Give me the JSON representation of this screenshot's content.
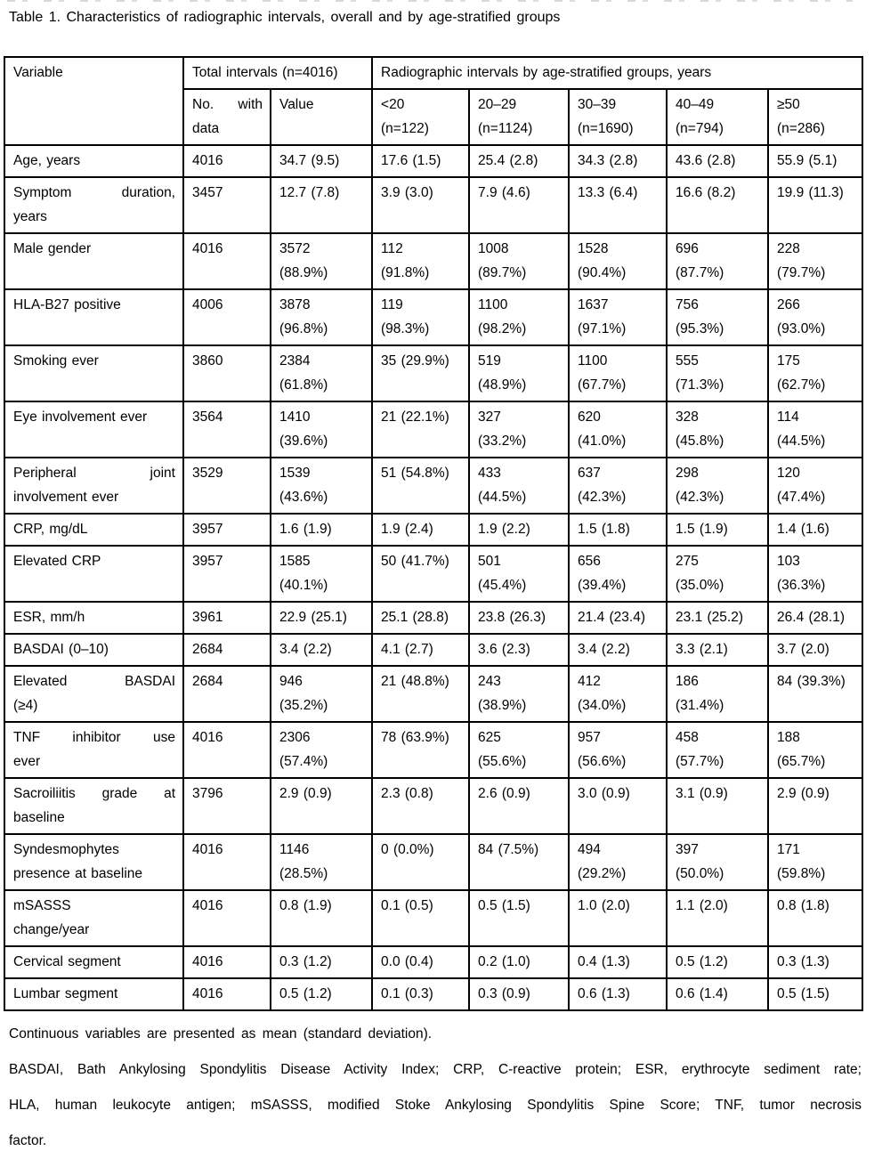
{
  "title": "Table 1. Characteristics of radiographic intervals, overall and by age-stratified groups",
  "table": {
    "header": {
      "variable": "Variable",
      "total": "Total intervals (n=4016)",
      "groups": "Radiographic intervals by age-stratified groups, years",
      "sub": [
        [
          "No. with",
          "data"
        ],
        [
          "Value"
        ],
        [
          "<20",
          "(n=122)"
        ],
        [
          "20–29",
          "(n=1124)"
        ],
        [
          "30–39",
          "(n=1690)"
        ],
        [
          "40–49",
          "(n=794)"
        ],
        [
          "≥50",
          "(n=286)"
        ]
      ]
    },
    "rows": [
      {
        "variable": [
          "Age, years"
        ],
        "indent": false,
        "cells": [
          [
            "4016"
          ],
          [
            "34.7 (9.5)"
          ],
          [
            "17.6 (1.5)"
          ],
          [
            "25.4 (2.8)"
          ],
          [
            "34.3 (2.8)"
          ],
          [
            "43.6 (2.8)"
          ],
          [
            "55.9 (5.1)"
          ]
        ]
      },
      {
        "variable": [
          "Symptom duration,",
          "years"
        ],
        "indent": false,
        "cells": [
          [
            "3457"
          ],
          [
            "12.7 (7.8)"
          ],
          [
            "3.9 (3.0)"
          ],
          [
            "7.9 (4.6)"
          ],
          [
            "13.3 (6.4)"
          ],
          [
            "16.6 (8.2)"
          ],
          [
            "19.9 (11.3)"
          ]
        ]
      },
      {
        "variable": [
          "Male gender"
        ],
        "indent": false,
        "cells": [
          [
            "4016"
          ],
          [
            "3572",
            "(88.9%)"
          ],
          [
            "112",
            "(91.8%)"
          ],
          [
            "1008",
            "(89.7%)"
          ],
          [
            "1528",
            "(90.4%)"
          ],
          [
            "696",
            "(87.7%)"
          ],
          [
            "228",
            "(79.7%)"
          ]
        ]
      },
      {
        "variable": [
          "HLA-B27 positive"
        ],
        "indent": false,
        "cells": [
          [
            "4006"
          ],
          [
            "3878",
            "(96.8%)"
          ],
          [
            "119",
            "(98.3%)"
          ],
          [
            "1100",
            "(98.2%)"
          ],
          [
            "1637",
            "(97.1%)"
          ],
          [
            "756",
            "(95.3%)"
          ],
          [
            "266",
            "(93.0%)"
          ]
        ]
      },
      {
        "variable": [
          "Smoking ever"
        ],
        "indent": false,
        "cells": [
          [
            "3860"
          ],
          [
            "2384",
            "(61.8%)"
          ],
          [
            "35 (29.9%)"
          ],
          [
            "519",
            "(48.9%)"
          ],
          [
            "1100",
            "(67.7%)"
          ],
          [
            "555",
            "(71.3%)"
          ],
          [
            "175",
            "(62.7%)"
          ]
        ]
      },
      {
        "variable": [
          "Eye involvement ever"
        ],
        "indent": false,
        "cells": [
          [
            "3564"
          ],
          [
            "1410",
            "(39.6%)"
          ],
          [
            "21 (22.1%)"
          ],
          [
            "327",
            "(33.2%)"
          ],
          [
            "620",
            "(41.0%)"
          ],
          [
            "328",
            "(45.8%)"
          ],
          [
            "114",
            "(44.5%)"
          ]
        ]
      },
      {
        "variable": [
          "Peripheral joint",
          "involvement ever"
        ],
        "indent": false,
        "cells": [
          [
            "3529"
          ],
          [
            "1539",
            "(43.6%)"
          ],
          [
            "51 (54.8%)"
          ],
          [
            "433",
            "(44.5%)"
          ],
          [
            "637",
            "(42.3%)"
          ],
          [
            "298",
            "(42.3%)"
          ],
          [
            "120",
            "(47.4%)"
          ]
        ]
      },
      {
        "variable": [
          "CRP, mg/dL"
        ],
        "indent": false,
        "cells": [
          [
            "3957"
          ],
          [
            "1.6 (1.9)"
          ],
          [
            "1.9 (2.4)"
          ],
          [
            "1.9 (2.2)"
          ],
          [
            "1.5 (1.8)"
          ],
          [
            "1.5 (1.9)"
          ],
          [
            "1.4 (1.6)"
          ]
        ]
      },
      {
        "variable": [
          "Elevated CRP"
        ],
        "indent": false,
        "cells": [
          [
            "3957"
          ],
          [
            "1585",
            "(40.1%)"
          ],
          [
            "50 (41.7%)"
          ],
          [
            "501",
            "(45.4%)"
          ],
          [
            "656",
            "(39.4%)"
          ],
          [
            "275",
            "(35.0%)"
          ],
          [
            "103",
            "(36.3%)"
          ]
        ]
      },
      {
        "variable": [
          "ESR, mm/h"
        ],
        "indent": false,
        "cells": [
          [
            "3961"
          ],
          [
            "22.9 (25.1)"
          ],
          [
            "25.1 (28.8)"
          ],
          [
            "23.8 (26.3)"
          ],
          [
            "21.4 (23.4)"
          ],
          [
            "23.1 (25.2)"
          ],
          [
            "26.4 (28.1)"
          ]
        ]
      },
      {
        "variable": [
          "BASDAI (0–10)"
        ],
        "indent": false,
        "cells": [
          [
            "2684"
          ],
          [
            "3.4 (2.2)"
          ],
          [
            "4.1 (2.7)"
          ],
          [
            "3.6 (2.3)"
          ],
          [
            "3.4 (2.2)"
          ],
          [
            "3.3 (2.1)"
          ],
          [
            "3.7 (2.0)"
          ]
        ]
      },
      {
        "variable": [
          "Elevated BASDAI",
          "(≥4)"
        ],
        "indent": false,
        "cells": [
          [
            "2684"
          ],
          [
            "946",
            "(35.2%)"
          ],
          [
            "21 (48.8%)"
          ],
          [
            "243",
            "(38.9%)"
          ],
          [
            "412",
            "(34.0%)"
          ],
          [
            "186",
            "(31.4%)"
          ],
          [
            "84 (39.3%)"
          ]
        ]
      },
      {
        "variable": [
          "TNF inhibitor use",
          "ever"
        ],
        "indent": false,
        "cells": [
          [
            "4016"
          ],
          [
            "2306",
            "(57.4%)"
          ],
          [
            "78 (63.9%)"
          ],
          [
            "625",
            "(55.6%)"
          ],
          [
            "957",
            "(56.6%)"
          ],
          [
            "458",
            "(57.7%)"
          ],
          [
            "188",
            "(65.7%)"
          ]
        ]
      },
      {
        "variable": [
          "Sacroiliitis grade at",
          "baseline"
        ],
        "indent": false,
        "cells": [
          [
            "3796"
          ],
          [
            "2.9 (0.9)"
          ],
          [
            "2.3 (0.8)"
          ],
          [
            "2.6 (0.9)"
          ],
          [
            "3.0 (0.9)"
          ],
          [
            "3.1 (0.9)"
          ],
          [
            "2.9 (0.9)"
          ]
        ]
      },
      {
        "variable": [
          "Syndesmophytes",
          "presence at baseline"
        ],
        "indent": false,
        "cells": [
          [
            "4016"
          ],
          [
            "1146",
            "(28.5%)"
          ],
          [
            "0 (0.0%)"
          ],
          [
            "84 (7.5%)"
          ],
          [
            "494",
            "(29.2%)"
          ],
          [
            "397",
            "(50.0%)"
          ],
          [
            "171",
            "(59.8%)"
          ]
        ]
      },
      {
        "variable": [
          "mSASSS",
          "change/year"
        ],
        "indent": false,
        "cells": [
          [
            "4016"
          ],
          [
            "0.8 (1.9)"
          ],
          [
            "0.1 (0.5)"
          ],
          [
            "0.5 (1.5)"
          ],
          [
            "1.0 (2.0)"
          ],
          [
            "1.1 (2.0)"
          ],
          [
            "0.8 (1.8)"
          ]
        ]
      },
      {
        "variable": [
          "Cervical segment"
        ],
        "indent": true,
        "cells": [
          [
            "4016"
          ],
          [
            "0.3 (1.2)"
          ],
          [
            "0.0 (0.4)"
          ],
          [
            "0.2 (1.0)"
          ],
          [
            "0.4 (1.3)"
          ],
          [
            "0.5 (1.2)"
          ],
          [
            "0.3 (1.3)"
          ]
        ]
      },
      {
        "variable": [
          "Lumbar segment"
        ],
        "indent": true,
        "cells": [
          [
            "4016"
          ],
          [
            "0.5 (1.2)"
          ],
          [
            "0.1 (0.3)"
          ],
          [
            "0.3 (0.9)"
          ],
          [
            "0.6 (1.3)"
          ],
          [
            "0.6 (1.4)"
          ],
          [
            "0.5 (1.5)"
          ]
        ]
      }
    ]
  },
  "footnotes": {
    "continuous": "Continuous variables are presented as mean (standard deviation).",
    "abbreviations_lines": [
      "BASDAI, Bath Ankylosing Spondylitis Disease Activity Index; CRP, C-reactive protein; ESR, erythrocyte sediment rate;",
      "HLA, human leukocyte antigen; mSASSS, modified Stoke Ankylosing Spondylitis Spine Score; TNF, tumor necrosis",
      "factor."
    ]
  }
}
